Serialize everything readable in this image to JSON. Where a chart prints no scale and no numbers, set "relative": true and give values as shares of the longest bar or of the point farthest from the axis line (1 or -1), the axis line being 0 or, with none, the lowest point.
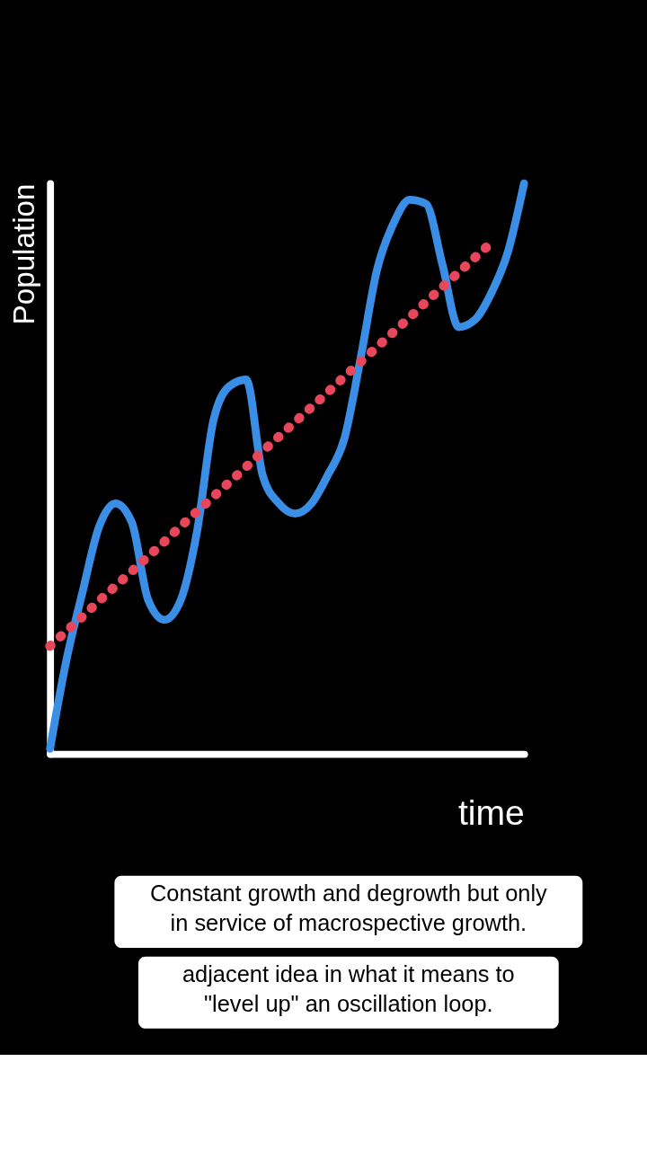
{
  "chart_data": {
    "type": "line",
    "relative": true,
    "xlabel": "time",
    "ylabel": "Population",
    "categories": [
      null,
      null,
      null,
      null,
      null,
      null,
      null,
      null,
      null,
      null,
      null,
      null,
      null,
      null,
      null,
      null,
      null,
      null,
      null,
      null,
      null,
      null,
      null,
      null,
      null,
      null,
      null,
      null,
      null,
      null
    ],
    "series": [
      {
        "color": "#3a8ee6",
        "line_style": "solid",
        "values": [
          0.009,
          0.164,
          0.285,
          0.398,
          0.439,
          0.406,
          0.27,
          0.235,
          0.27,
          0.391,
          0.585,
          0.645,
          0.656,
          0.489,
          0.439,
          0.421,
          0.439,
          0.489,
          0.552,
          0.694,
          0.848,
          0.929,
          0.971,
          0.964,
          0.858,
          0.748,
          0.761,
          0.808,
          0.879,
          1
        ]
      },
      {
        "color": "#e8465a",
        "line_style": "dotted",
        "values": [
          0.189,
          0.215,
          0.241,
          0.268,
          0.294,
          0.32,
          0.346,
          0.372,
          0.399,
          0.425,
          0.451,
          0.477,
          0.503,
          0.53,
          0.556,
          0.582,
          0.608,
          0.634,
          0.661,
          0.687,
          0.713,
          0.739,
          0.765,
          0.792,
          0.818,
          0.844,
          0.87,
          0.896,
          null,
          null
        ]
      }
    ],
    "legend": false,
    "annotations": [
      "Constant growth and degrowth but only in service of macrospective growth.",
      "adjacent idea in what it means to \"level up\" an oscillation loop."
    ]
  }
}
